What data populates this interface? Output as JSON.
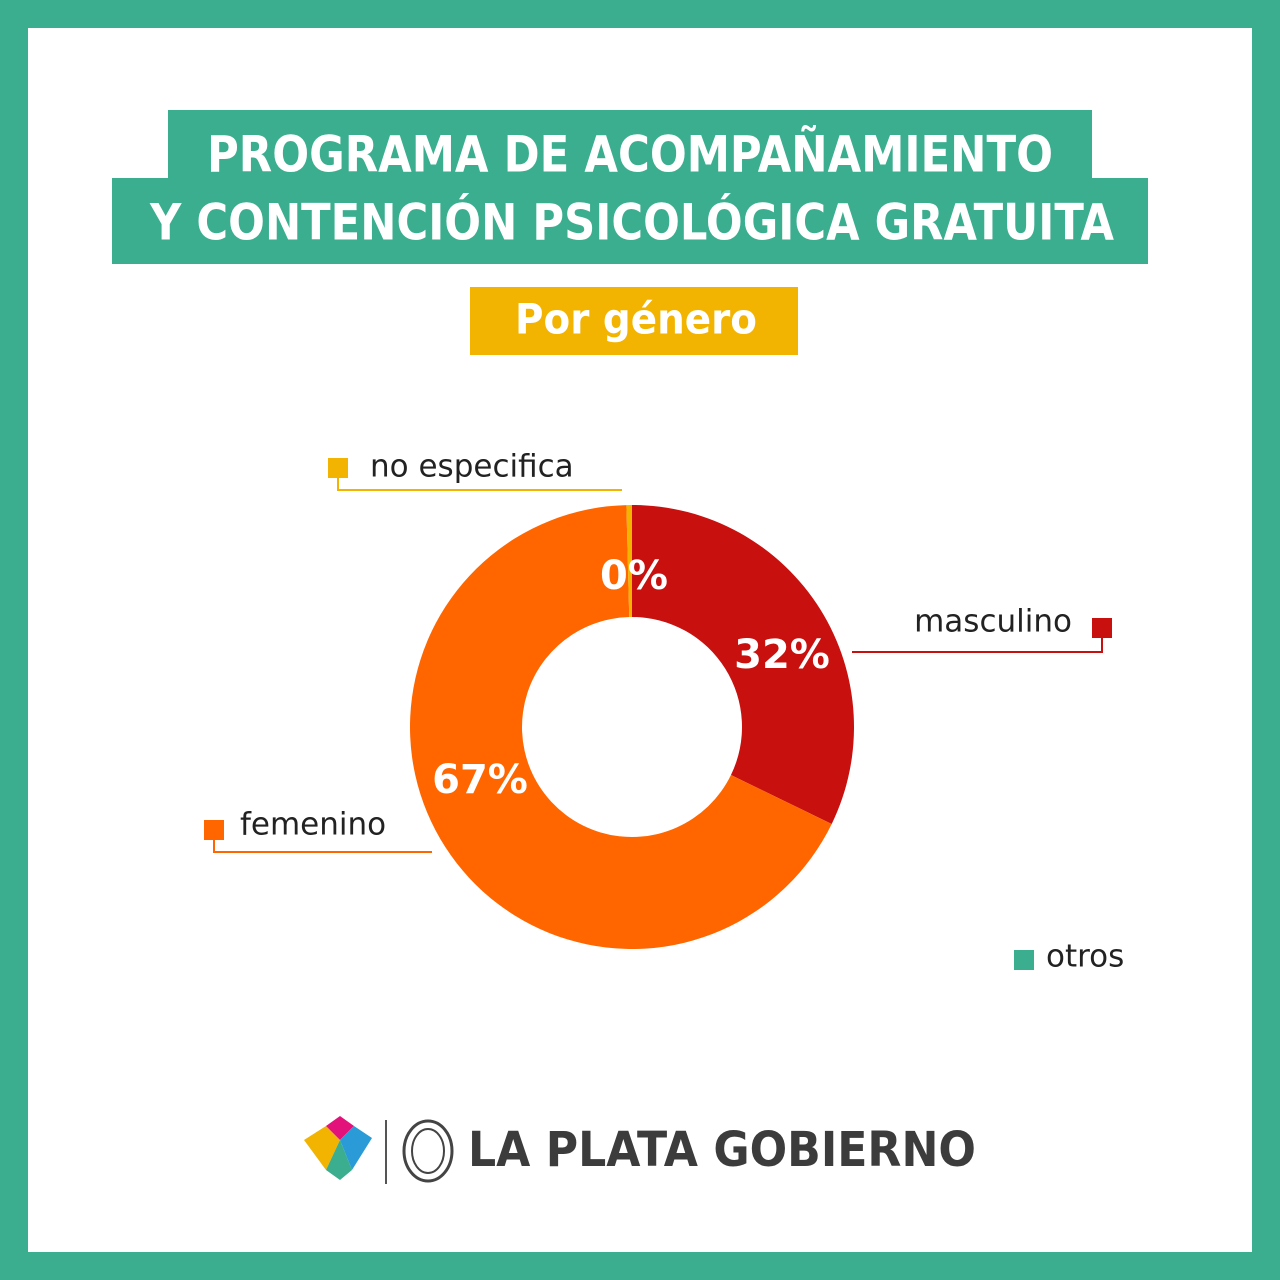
{
  "chart_data": {
    "type": "donut",
    "title": [
      "PROGRAMA DE ACOMPAÑAMIENTO",
      "Y CONTENCIÓN PSICOLÓGICA GRATUITA"
    ],
    "subtitle": "Por género",
    "categories": [
      "masculino",
      "femenino",
      "otros",
      "no especifica"
    ],
    "values": [
      32,
      67,
      0,
      0.4
    ],
    "value_labels": [
      "32%",
      "67%",
      null,
      "0%"
    ],
    "colors": [
      "#c8100e",
      "#ff6600",
      "#3aae8f",
      "#f2b400"
    ]
  },
  "footer": {
    "brand": "LA PLATA GOBIERNO"
  }
}
